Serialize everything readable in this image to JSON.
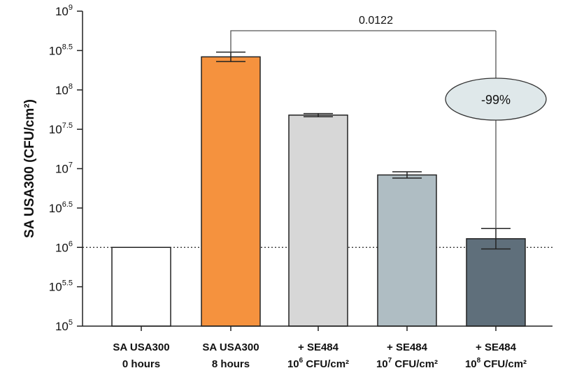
{
  "chart_data": {
    "type": "bar",
    "ylabel": "SA USA300 (CFU/cm²)",
    "ylim": [
      5,
      9
    ],
    "y_scale": "log10",
    "y_ticks": [
      {
        "base": "10",
        "exp": "9"
      },
      {
        "base": "10",
        "exp": "8.5"
      },
      {
        "base": "10",
        "exp": "8"
      },
      {
        "base": "10",
        "exp": "7.5"
      },
      {
        "base": "10",
        "exp": "7"
      },
      {
        "base": "10",
        "exp": "6.5"
      },
      {
        "base": "10",
        "exp": "6"
      },
      {
        "base": "10",
        "exp": "5.5"
      },
      {
        "base": "10",
        "exp": "5"
      }
    ],
    "y_tick_values": [
      9,
      8.5,
      8,
      7.5,
      7,
      6.5,
      6,
      5.5,
      5
    ],
    "categories": [
      {
        "line1": "SA USA300",
        "line2": "0 hours",
        "line2_sup": "",
        "line2_rest": ""
      },
      {
        "line1": "SA USA300",
        "line2": "8 hours",
        "line2_sup": "",
        "line2_rest": ""
      },
      {
        "line1": "+ SE484",
        "line2": "10",
        "line2_sup": "6",
        "line2_rest": " CFU/cm²"
      },
      {
        "line1": "+ SE484",
        "line2": "10",
        "line2_sup": "7",
        "line2_rest": " CFU/cm²"
      },
      {
        "line1": "+ SE484",
        "line2": "10",
        "line2_sup": "8",
        "line2_rest": " CFU/cm²"
      }
    ],
    "values": [
      6.0,
      8.42,
      7.68,
      6.92,
      6.11
    ],
    "errors": [
      0,
      0.06,
      0.02,
      0.04,
      0.13
    ],
    "colors": [
      "#ffffff",
      "#f5923e",
      "#d7d7d7",
      "#afbdc3",
      "#5f6f7b"
    ],
    "reference_line": 6,
    "comparison": {
      "from": 1,
      "to": 4,
      "label": "0.0122"
    },
    "annotation": {
      "label": "-99%",
      "fill": "#dfe8ea"
    },
    "grid": false
  }
}
